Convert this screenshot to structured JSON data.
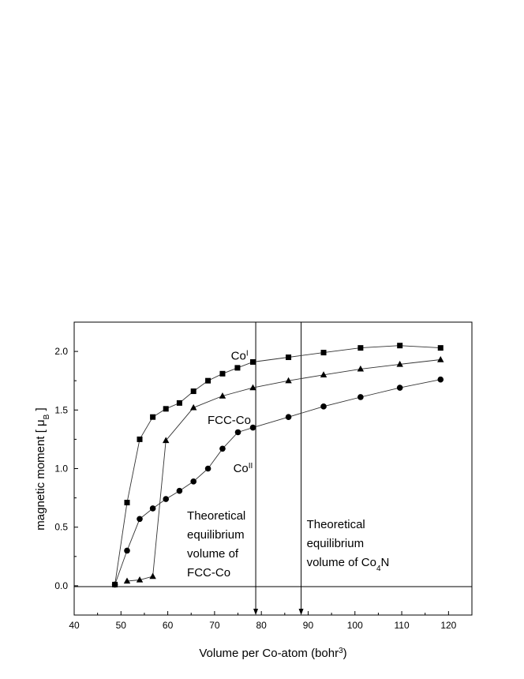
{
  "chart_data": {
    "type": "line",
    "xlabel": "Volume per Co-atom (bohr³)",
    "ylabel": "magnetic moment [ μB ]",
    "xlim": [
      40,
      125
    ],
    "ylim": [
      -0.25,
      2.25
    ],
    "xticks": [
      40,
      50,
      60,
      70,
      80,
      90,
      100,
      110,
      120
    ],
    "yticks": [
      0.0,
      0.5,
      1.0,
      1.5,
      2.0
    ],
    "xtick_labels": [
      "40",
      "50",
      "60",
      "70",
      "80",
      "90",
      "100",
      "110",
      "120"
    ],
    "ytick_labels": [
      "0.0",
      "0.5",
      "1.0",
      "1.5",
      "2.0"
    ],
    "grid": false,
    "legend": "none",
    "series": [
      {
        "name": "CoI",
        "marker": "square",
        "x": [
          48.7,
          51.3,
          54.0,
          56.8,
          59.6,
          62.5,
          65.5,
          68.6,
          71.7,
          74.9,
          78.2,
          85.8,
          93.3,
          101.2,
          109.6,
          118.3
        ],
        "y": [
          0.01,
          0.71,
          1.25,
          1.44,
          1.51,
          1.56,
          1.66,
          1.75,
          1.81,
          1.86,
          1.91,
          1.95,
          1.99,
          2.03,
          2.05,
          2.03
        ]
      },
      {
        "name": "FCC-Co",
        "marker": "triangle",
        "x": [
          51.3,
          54.0,
          56.8,
          59.6,
          65.5,
          71.7,
          78.2,
          85.8,
          93.3,
          101.2,
          109.6,
          118.3
        ],
        "y": [
          0.04,
          0.05,
          0.08,
          1.24,
          1.52,
          1.62,
          1.69,
          1.75,
          1.8,
          1.85,
          1.89,
          1.93
        ]
      },
      {
        "name": "CoII",
        "marker": "circle",
        "x": [
          48.7,
          51.3,
          54.0,
          56.8,
          59.6,
          62.5,
          65.5,
          68.6,
          71.7,
          75.0,
          78.2,
          85.8,
          93.3,
          101.2,
          109.6,
          118.3
        ],
        "y": [
          0.01,
          0.3,
          0.57,
          0.66,
          0.74,
          0.81,
          0.89,
          1.0,
          1.17,
          1.31,
          1.35,
          1.44,
          1.53,
          1.61,
          1.69,
          1.76
        ]
      }
    ],
    "series_labels": [
      {
        "series": "CoI",
        "base": "Co",
        "sup": "I",
        "x": 73.5,
        "y": 1.93
      },
      {
        "series": "FCC-Co",
        "base": "FCC-Co",
        "x": 68.5,
        "y": 1.38
      },
      {
        "series": "CoII",
        "base": "Co",
        "sup": "II",
        "x": 74.0,
        "y": 0.97
      }
    ],
    "reference_lines": [
      {
        "x": 78.8,
        "lines": [
          {
            "text": "Theoretical"
          },
          {
            "text": "equilibrium"
          },
          {
            "text": "volume of"
          },
          {
            "text": "FCC-Co"
          }
        ]
      },
      {
        "x": 88.5,
        "lines": [
          {
            "text": "Theoretical"
          },
          {
            "text": "equilibrium"
          },
          {
            "text": "volume of Co",
            "sub": "4",
            "suffix": "N"
          }
        ]
      }
    ],
    "zero_line": 0.0
  }
}
